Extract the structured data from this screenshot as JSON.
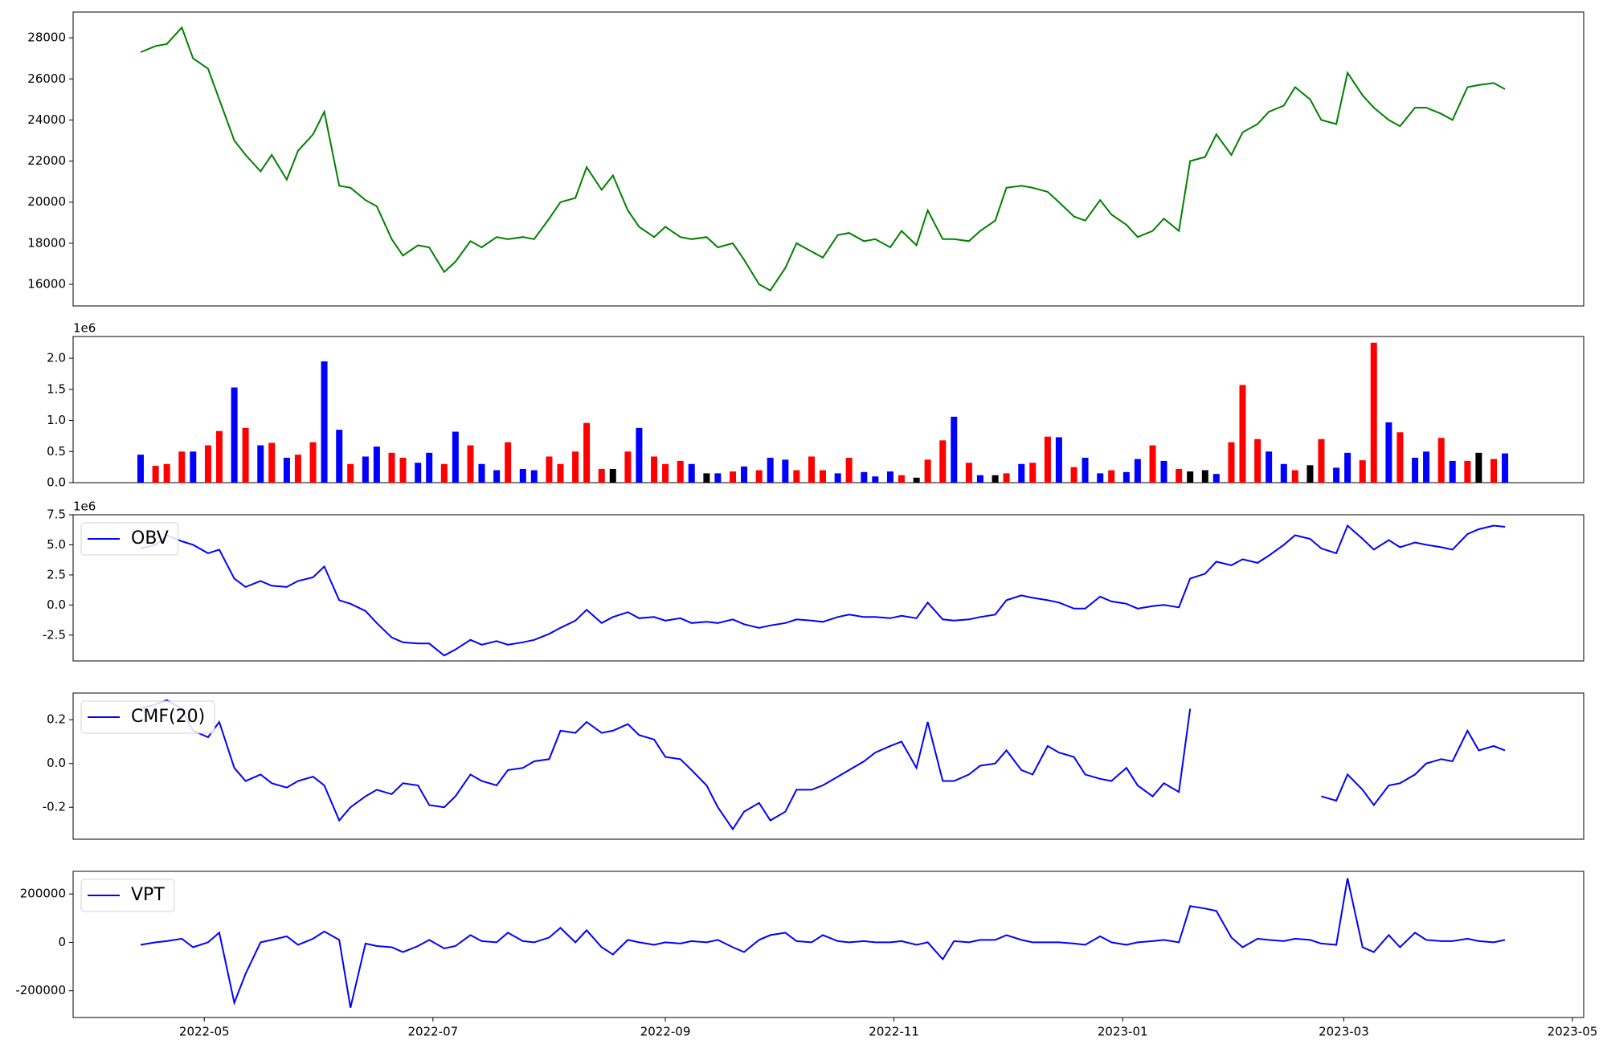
{
  "chart_data": {
    "x": [
      "2022-04-14",
      "2022-04-18",
      "2022-04-21",
      "2022-04-25",
      "2022-04-28",
      "2022-05-02",
      "2022-05-05",
      "2022-05-09",
      "2022-05-12",
      "2022-05-16",
      "2022-05-19",
      "2022-05-23",
      "2022-05-26",
      "2022-05-30",
      "2022-06-02",
      "2022-06-06",
      "2022-06-09",
      "2022-06-13",
      "2022-06-16",
      "2022-06-20",
      "2022-06-23",
      "2022-06-27",
      "2022-06-30",
      "2022-07-04",
      "2022-07-07",
      "2022-07-11",
      "2022-07-14",
      "2022-07-18",
      "2022-07-21",
      "2022-07-25",
      "2022-07-28",
      "2022-08-01",
      "2022-08-04",
      "2022-08-08",
      "2022-08-11",
      "2022-08-15",
      "2022-08-18",
      "2022-08-22",
      "2022-08-25",
      "2022-08-29",
      "2022-09-01",
      "2022-09-05",
      "2022-09-08",
      "2022-09-12",
      "2022-09-15",
      "2022-09-19",
      "2022-09-22",
      "2022-09-26",
      "2022-09-29",
      "2022-10-03",
      "2022-10-06",
      "2022-10-10",
      "2022-10-13",
      "2022-10-17",
      "2022-10-20",
      "2022-10-24",
      "2022-10-27",
      "2022-10-31",
      "2022-11-03",
      "2022-11-07",
      "2022-11-10",
      "2022-11-14",
      "2022-11-17",
      "2022-11-21",
      "2022-11-24",
      "2022-11-28",
      "2022-12-01",
      "2022-12-05",
      "2022-12-08",
      "2022-12-12",
      "2022-12-15",
      "2022-12-19",
      "2022-12-22",
      "2022-12-26",
      "2022-12-29",
      "2023-01-02",
      "2023-01-05",
      "2023-01-09",
      "2023-01-12",
      "2023-01-16",
      "2023-01-19",
      "2023-01-23",
      "2023-01-26",
      "2023-01-30",
      "2023-02-02",
      "2023-02-06",
      "2023-02-09",
      "2023-02-13",
      "2023-02-16",
      "2023-02-20",
      "2023-02-23",
      "2023-02-27",
      "2023-03-02",
      "2023-03-06",
      "2023-03-09",
      "2023-03-13",
      "2023-03-16",
      "2023-03-20",
      "2023-03-23",
      "2023-03-27",
      "2023-03-30",
      "2023-04-03",
      "2023-04-06",
      "2023-04-10",
      "2023-04-13"
    ],
    "xlim": [
      "2022-03-27",
      "2023-05-04"
    ],
    "xticks": [
      "2022-05",
      "2022-07",
      "2022-09",
      "2022-11",
      "2023-01",
      "2023-03",
      "2023-05"
    ],
    "panels": [
      {
        "type": "line",
        "ylim": [
          14946,
          29255
        ],
        "yticks": [
          16000,
          18000,
          20000,
          22000,
          24000,
          26000,
          28000
        ],
        "series": [
          {
            "color": "green",
            "values": [
              27300,
              27600,
              27700,
              28500,
              27000,
              26500,
              25000,
              23000,
              22300,
              21500,
              22300,
              21100,
              22500,
              23300,
              24400,
              20800,
              20700,
              20100,
              19800,
              18200,
              17400,
              17900,
              17800,
              16600,
              17100,
              18100,
              17800,
              18300,
              18200,
              18300,
              18200,
              19200,
              20000,
              20200,
              21700,
              20600,
              21300,
              19600,
              18800,
              18300,
              18800,
              18300,
              18200,
              18300,
              17800,
              18000,
              17200,
              16000,
              15700,
              16800,
              18000,
              17600,
              17300,
              18400,
              18500,
              18100,
              18200,
              17800,
              18600,
              17900,
              19600,
              18200,
              18200,
              18100,
              18600,
              19100,
              20700,
              20800,
              20700,
              20500,
              20000,
              19300,
              19100,
              20100,
              19400,
              18900,
              18300,
              18600,
              19200,
              18600,
              22000,
              22200,
              23300,
              22300,
              23400,
              23800,
              24400,
              24700,
              25600,
              25000,
              24000,
              23800,
              26300,
              25200,
              24600,
              24000,
              23700,
              24600,
              24600,
              24300,
              24000,
              25600,
              25700,
              25800,
              25500
            ]
          }
        ]
      },
      {
        "type": "bar",
        "offset_label": "1e6",
        "ylim": [
          0,
          2.35
        ],
        "yticks": [
          {
            "value": 0,
            "label": "0.0"
          },
          0.5,
          {
            "value": 1,
            "label": "1.0"
          },
          1.5,
          {
            "value": 2,
            "label": "2.0"
          }
        ],
        "series": [
          {
            "values": [
              0.45,
              0.27,
              0.3,
              0.5,
              0.5,
              0.6,
              0.83,
              1.53,
              0.88,
              0.6,
              0.64,
              0.4,
              0.45,
              0.65,
              1.95,
              0.85,
              0.3,
              0.42,
              0.58,
              0.48,
              0.4,
              0.32,
              0.48,
              0.3,
              0.82,
              0.6,
              0.3,
              0.2,
              0.65,
              0.22,
              0.2,
              0.42,
              0.3,
              0.5,
              0.96,
              0.22,
              0.22,
              0.5,
              0.88,
              0.42,
              0.3,
              0.35,
              0.3,
              0.15,
              0.15,
              0.18,
              0.26,
              0.2,
              0.4,
              0.37,
              0.2,
              0.42,
              0.2,
              0.15,
              0.4,
              0.17,
              0.1,
              0.18,
              0.12,
              0.08,
              0.37,
              0.68,
              1.06,
              0.32,
              0.12,
              0.12,
              0.15,
              0.3,
              0.32,
              0.74,
              0.73,
              0.25,
              0.4,
              0.15,
              0.2,
              0.17,
              0.38,
              0.6,
              0.35,
              0.22,
              0.18,
              0.2,
              0.14,
              0.65,
              1.57,
              0.7,
              0.5,
              0.3,
              0.2,
              0.28,
              0.7,
              0.24,
              0.48,
              0.36,
              2.25,
              0.97,
              0.81,
              0.4,
              0.5,
              0.72,
              0.35,
              0.35,
              0.48,
              0.38,
              0.47
            ],
            "colors": [
              "blue",
              "red",
              "red",
              "red",
              "blue",
              "red",
              "red",
              "blue",
              "red",
              "blue",
              "red",
              "blue",
              "red",
              "red",
              "blue",
              "blue",
              "red",
              "blue",
              "blue",
              "red",
              "red",
              "blue",
              "blue",
              "red",
              "blue",
              "red",
              "blue",
              "blue",
              "red",
              "blue",
              "blue",
              "red",
              "red",
              "red",
              "red",
              "red",
              "black",
              "red",
              "blue",
              "red",
              "red",
              "red",
              "blue",
              "black",
              "blue",
              "red",
              "blue",
              "red",
              "blue",
              "blue",
              "red",
              "red",
              "red",
              "blue",
              "red",
              "blue",
              "blue",
              "blue",
              "red",
              "black",
              "red",
              "red",
              "blue",
              "red",
              "blue",
              "black",
              "red",
              "blue",
              "red",
              "red",
              "blue",
              "red",
              "blue",
              "blue",
              "red",
              "blue",
              "blue",
              "red",
              "blue",
              "red",
              "black",
              "black",
              "blue",
              "red",
              "red",
              "red",
              "blue",
              "blue",
              "red",
              "black",
              "red",
              "blue",
              "blue",
              "red",
              "red",
              "blue",
              "red",
              "blue",
              "blue",
              "red",
              "blue",
              "red",
              "black",
              "red",
              "blue"
            ]
          }
        ]
      },
      {
        "type": "line",
        "offset_label": "1e6",
        "ylim": [
          -4.65,
          7.5
        ],
        "legend": "upper left",
        "yticks": [
          -2.5,
          {
            "value": 0,
            "label": "0.0"
          },
          2.5,
          {
            "value": 5,
            "label": "5.0"
          },
          7.5
        ],
        "series": [
          {
            "name": "OBV",
            "color": "blue",
            "values": [
              4.7,
              5.0,
              5.8,
              5.3,
              5.0,
              4.3,
              4.6,
              2.2,
              1.5,
              2.0,
              1.6,
              1.5,
              2.0,
              2.3,
              3.2,
              0.4,
              0.1,
              -0.5,
              -1.5,
              -2.7,
              -3.1,
              -3.2,
              -3.2,
              -4.2,
              -3.7,
              -2.9,
              -3.3,
              -3.0,
              -3.3,
              -3.1,
              -2.9,
              -2.4,
              -1.9,
              -1.3,
              -0.4,
              -1.5,
              -1.0,
              -0.6,
              -1.1,
              -1.0,
              -1.3,
              -1.1,
              -1.5,
              -1.4,
              -1.5,
              -1.2,
              -1.6,
              -1.9,
              -1.7,
              -1.5,
              -1.2,
              -1.3,
              -1.4,
              -1.0,
              -0.8,
              -1.0,
              -1.0,
              -1.1,
              -0.9,
              -1.1,
              0.2,
              -1.2,
              -1.3,
              -1.2,
              -1.0,
              -0.8,
              0.4,
              0.8,
              0.6,
              0.4,
              0.2,
              -0.3,
              -0.3,
              0.7,
              0.3,
              0.1,
              -0.3,
              -0.1,
              0.0,
              -0.2,
              2.2,
              2.6,
              3.6,
              3.3,
              3.8,
              3.5,
              4.1,
              5.0,
              5.8,
              5.5,
              4.7,
              4.3,
              6.6,
              5.5,
              4.6,
              5.4,
              4.8,
              5.2,
              5.0,
              4.8,
              4.6,
              5.9,
              6.3,
              6.6,
              6.5
            ]
          }
        ]
      },
      {
        "type": "line",
        "ylim": [
          -0.346,
          0.322
        ],
        "legend": "upper left",
        "yticks": [
          -0.2,
          {
            "value": 0,
            "label": "0.0"
          },
          0.2
        ],
        "series": [
          {
            "name": "CMF(20)",
            "color": "blue",
            "values": [
              0.25,
              0.27,
              0.29,
              0.25,
              0.15,
              0.12,
              0.19,
              -0.02,
              -0.08,
              -0.05,
              -0.09,
              -0.11,
              -0.08,
              -0.06,
              -0.1,
              -0.26,
              -0.2,
              -0.15,
              -0.12,
              -0.14,
              -0.09,
              -0.1,
              -0.19,
              -0.2,
              -0.15,
              -0.05,
              -0.08,
              -0.1,
              -0.03,
              -0.02,
              0.01,
              0.02,
              0.15,
              0.14,
              0.19,
              0.14,
              0.15,
              0.18,
              0.13,
              0.11,
              0.03,
              0.02,
              -0.03,
              -0.1,
              -0.2,
              -0.3,
              -0.22,
              -0.18,
              -0.26,
              -0.22,
              -0.12,
              -0.12,
              -0.1,
              -0.06,
              -0.03,
              0.01,
              0.05,
              0.08,
              0.1,
              -0.02,
              0.19,
              -0.08,
              -0.08,
              -0.05,
              -0.01,
              0.0,
              0.06,
              -0.03,
              -0.05,
              0.08,
              0.05,
              0.03,
              -0.05,
              -0.07,
              -0.08,
              -0.02,
              -0.1,
              -0.15,
              -0.09,
              -0.13,
              0.25,
              null,
              null,
              null,
              null,
              null,
              null,
              null,
              null,
              null,
              -0.15,
              -0.17,
              -0.05,
              -0.12,
              -0.19,
              -0.1,
              -0.09,
              -0.05,
              0.0,
              0.02,
              0.01,
              0.15,
              0.06,
              0.08,
              0.06
            ]
          }
        ]
      },
      {
        "type": "line",
        "ylim": [
          -310600,
          293600
        ],
        "legend": "upper left",
        "yticks": [
          -200000,
          0,
          200000
        ],
        "series": [
          {
            "name": "VPT",
            "color": "blue",
            "values": [
              -10000,
              0,
              5000,
              15000,
              -20000,
              0,
              40000,
              -250000,
              -130000,
              0,
              10000,
              25000,
              -10000,
              15000,
              45000,
              10000,
              -270000,
              -5000,
              -15000,
              -20000,
              -40000,
              -15000,
              10000,
              -25000,
              -15000,
              30000,
              5000,
              0,
              40000,
              5000,
              0,
              20000,
              60000,
              0,
              50000,
              -20000,
              -50000,
              10000,
              0,
              -10000,
              0,
              -5000,
              5000,
              0,
              10000,
              -20000,
              -40000,
              10000,
              30000,
              40000,
              5000,
              0,
              30000,
              5000,
              0,
              5000,
              0,
              0,
              5000,
              -10000,
              0,
              -70000,
              5000,
              0,
              10000,
              10000,
              30000,
              10000,
              0,
              0,
              0,
              -5000,
              -10000,
              25000,
              0,
              -10000,
              0,
              5000,
              10000,
              0,
              150000,
              140000,
              130000,
              20000,
              -20000,
              15000,
              10000,
              5000,
              15000,
              10000,
              -5000,
              -10000,
              265000,
              -20000,
              -40000,
              30000,
              -20000,
              40000,
              10000,
              5000,
              5000,
              15000,
              5000,
              0,
              10000
            ]
          }
        ]
      }
    ]
  }
}
